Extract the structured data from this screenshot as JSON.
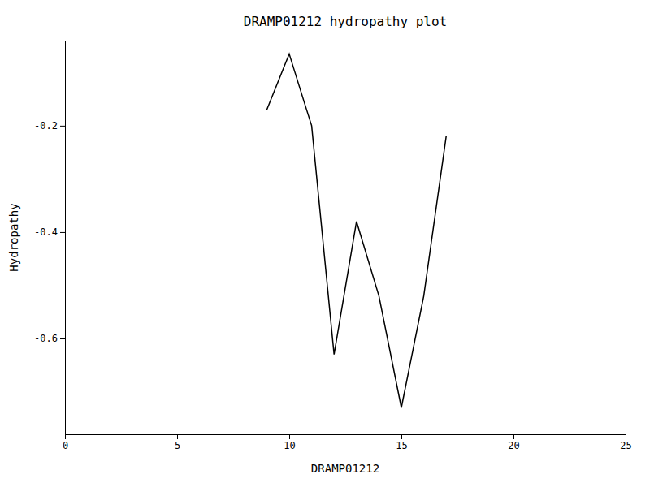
{
  "chart_data": {
    "type": "line",
    "title": "DRAMP01212 hydropathy plot",
    "xlabel": "DRAMP01212",
    "ylabel": "Hydropathy",
    "xlim": [
      0,
      25
    ],
    "ylim": [
      -0.78,
      -0.04
    ],
    "xticks": [
      0,
      5,
      10,
      15,
      20,
      25
    ],
    "yticks": [
      -0.6,
      -0.4,
      -0.2
    ],
    "x": [
      9.0,
      10.0,
      10.7,
      11.0,
      12.0,
      13.0,
      14.0,
      15.0,
      16.0,
      17.0
    ],
    "values": [
      -0.17,
      -0.065,
      -0.16,
      -0.2,
      -0.63,
      -0.38,
      -0.52,
      -0.73,
      -0.52,
      -0.22
    ],
    "color": "#000000",
    "grid": false
  }
}
